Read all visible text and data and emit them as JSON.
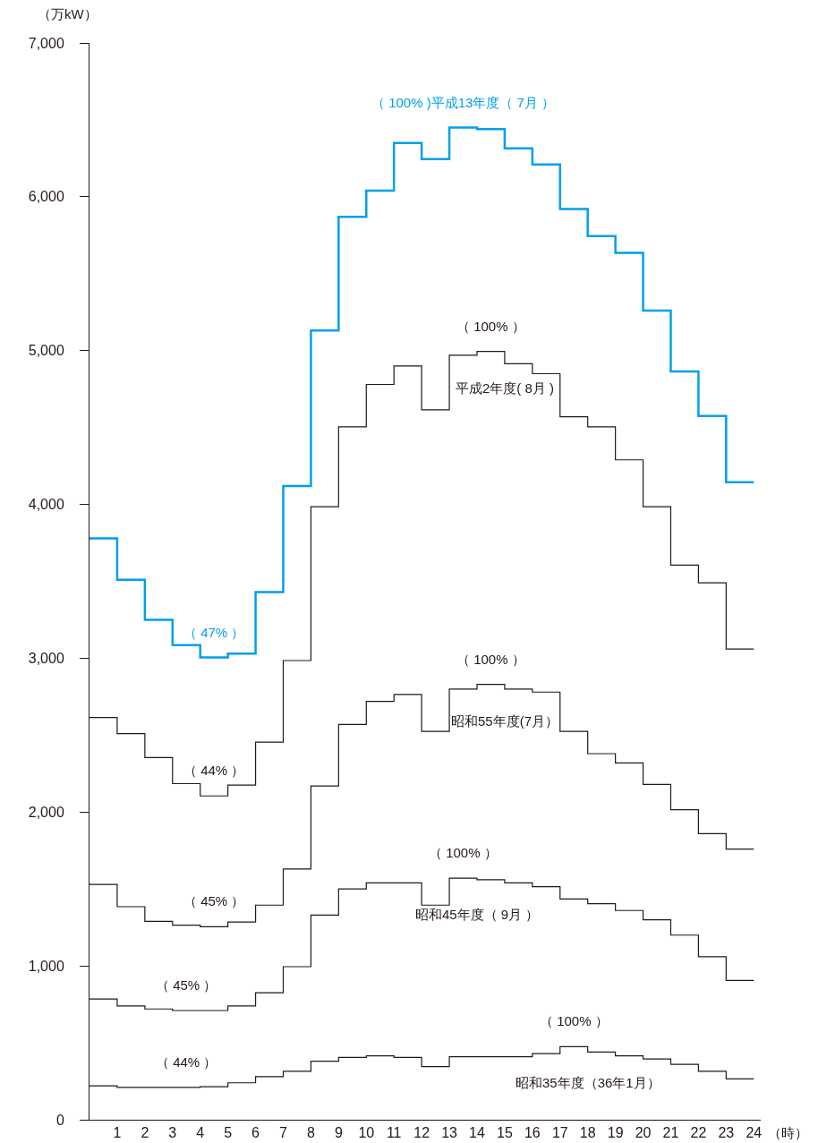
{
  "chart_data": {
    "type": "step",
    "ylabel": "（万kW）",
    "xlabel": "（時）",
    "x": [
      0,
      1,
      2,
      3,
      4,
      5,
      6,
      7,
      8,
      9,
      10,
      11,
      12,
      13,
      14,
      15,
      16,
      17,
      18,
      19,
      20,
      21,
      22,
      23,
      24
    ],
    "series": [
      {
        "color": "#00a0e9",
        "values": [
          3780,
          3510,
          3250,
          3085,
          3005,
          3030,
          3430,
          4120,
          5130,
          5870,
          6040,
          6350,
          6245,
          6450,
          6440,
          6315,
          6210,
          5920,
          5745,
          5635,
          5260,
          4865,
          4575,
          4145,
          4145
        ]
      },
      {
        "name": "平成2年度( 8月 )",
        "color": "#231815",
        "values": [
          2615,
          2510,
          2355,
          2185,
          2105,
          2175,
          2455,
          2985,
          3985,
          4505,
          4780,
          4900,
          4615,
          4970,
          4995,
          4915,
          4850,
          4570,
          4505,
          4290,
          3985,
          3605,
          3490,
          3060,
          3060
        ]
      },
      {
        "name": "昭和55年度(7月）",
        "color": "#231815",
        "values": [
          1530,
          1385,
          1290,
          1265,
          1255,
          1285,
          1395,
          1630,
          2170,
          2570,
          2720,
          2765,
          2525,
          2800,
          2830,
          2800,
          2780,
          2525,
          2380,
          2320,
          2180,
          2015,
          1860,
          1760,
          1760
        ]
      },
      {
        "name": "昭和45年度（ 9月 ）",
        "color": "#231815",
        "values": [
          785,
          740,
          720,
          710,
          710,
          740,
          825,
          995,
          1330,
          1500,
          1540,
          1540,
          1395,
          1570,
          1560,
          1540,
          1515,
          1435,
          1405,
          1360,
          1300,
          1200,
          1060,
          905,
          905
        ]
      },
      {
        "name": "昭和35年度（36年1月）",
        "color": "#231815",
        "values": [
          220,
          210,
          210,
          210,
          215,
          240,
          280,
          315,
          380,
          405,
          415,
          405,
          345,
          410,
          410,
          410,
          430,
          475,
          440,
          415,
          395,
          360,
          315,
          265,
          265
        ]
      }
    ],
    "xlim": [
      0,
      24.25
    ],
    "xticks": [
      1,
      2,
      3,
      4,
      5,
      6,
      7,
      8,
      9,
      10,
      11,
      12,
      13,
      14,
      15,
      16,
      17,
      18,
      19,
      20,
      21,
      22,
      23,
      24
    ],
    "ylim": [
      0,
      7000
    ],
    "yticks": [
      0,
      {
        "value": 1000,
        "label": "1,000"
      },
      {
        "value": 2000,
        "label": "2,000"
      },
      {
        "value": 3000,
        "label": "3,000"
      },
      {
        "value": 4000,
        "label": "4,000"
      },
      {
        "value": 5000,
        "label": "5,000"
      },
      {
        "value": 6000,
        "label": "6,000"
      },
      {
        "value": 7000,
        "label": "7,000"
      }
    ],
    "grid": false,
    "legend": false,
    "marker": "none",
    "line_style": "solid",
    "annotations": [
      {
        "text": "（ 100% )平成13年度（ 7月 ）",
        "x": 13,
        "y": 6450
      },
      {
        "text": "（ 47% ）",
        "x": 4,
        "y": 3005
      },
      {
        "text": "（ 100% ）",
        "x": 14,
        "y": 4995
      },
      {
        "text": "（ 44% ）",
        "x": 4,
        "y": 2105
      },
      {
        "text": "（ 100% ）",
        "x": 14,
        "y": 2830
      },
      {
        "text": "（ 45% ）",
        "x": 4,
        "y": 1255
      },
      {
        "text": "（ 100% ）",
        "x": 13,
        "y": 1570
      },
      {
        "text": "（ 45% ）",
        "x": 3,
        "y": 710
      },
      {
        "text": "（ 100% ）",
        "x": 17,
        "y": 475
      },
      {
        "text": "（ 44% ）",
        "x": 3,
        "y": 210
      }
    ]
  }
}
